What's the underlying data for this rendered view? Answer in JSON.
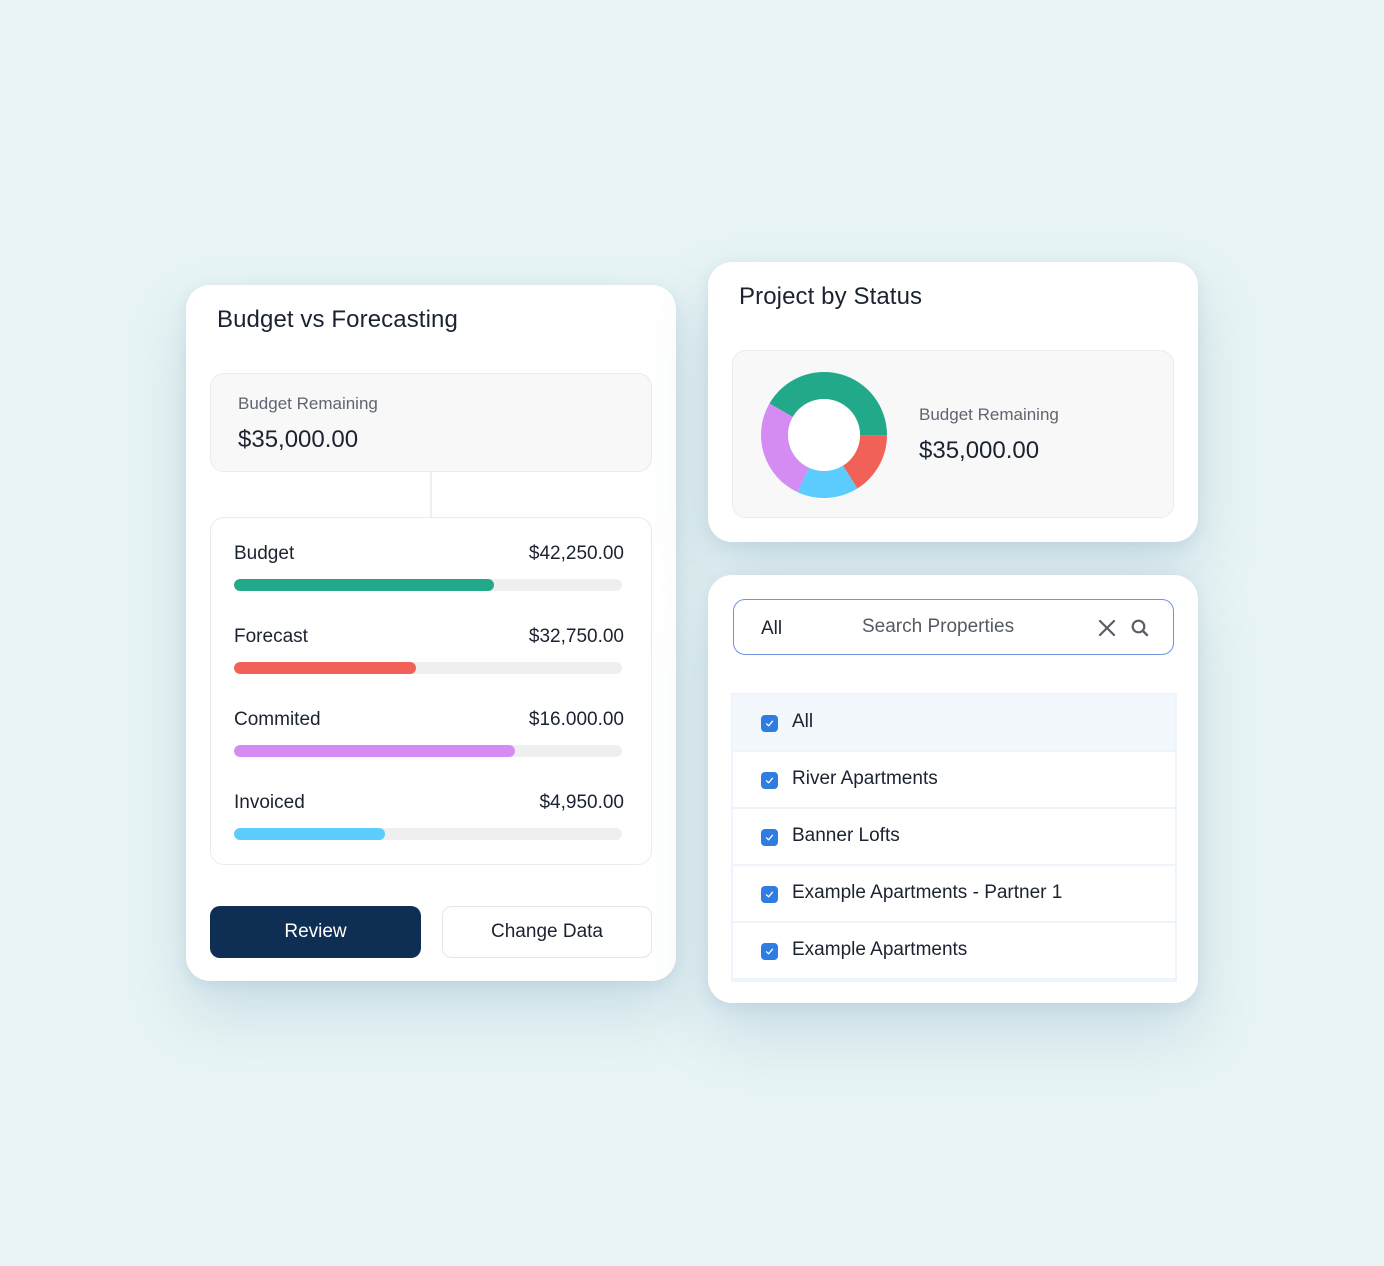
{
  "budget_card": {
    "title": "Budget vs Forecasting",
    "remaining": {
      "label": "Budget Remaining",
      "value": "$35,000.00"
    },
    "metrics": [
      {
        "label": "Budget",
        "value": "$42,250.00",
        "percent": 67,
        "color": "#22a98a"
      },
      {
        "label": "Forecast",
        "value": "$32,750.00",
        "percent": 47,
        "color": "#f26157"
      },
      {
        "label": "Commited",
        "value": "$16.000.00",
        "percent": 72.5,
        "color": "#d48cf3"
      },
      {
        "label": "Invoiced",
        "value": "$4,950.00",
        "percent": 39,
        "color": "#5ccbfd"
      }
    ],
    "buttons": {
      "review": "Review",
      "change_data": "Change Data"
    }
  },
  "status_card": {
    "title": "Project by Status",
    "remaining": {
      "label": "Budget Remaining",
      "value": "$35,000.00"
    }
  },
  "filter_card": {
    "search": {
      "scope": "All",
      "placeholder": "Search Properties"
    },
    "options": [
      {
        "label": "All",
        "checked": true
      },
      {
        "label": "River Apartments",
        "checked": true
      },
      {
        "label": "Banner Lofts",
        "checked": true
      },
      {
        "label": "Example Apartments - Partner 1",
        "checked": true
      },
      {
        "label": "Example Apartments",
        "checked": true
      }
    ]
  },
  "colors": {
    "primary_button": "#0e2f53",
    "checkbox": "#2f7de1",
    "search_border": "#6f93de",
    "background": "#e8f4f5"
  },
  "chart_data": [
    {
      "type": "bar",
      "title": "Budget vs Forecasting",
      "orientation": "horizontal",
      "categories": [
        "Budget",
        "Forecast",
        "Commited",
        "Invoiced"
      ],
      "value_labels": [
        "$42,250.00",
        "$32,750.00",
        "$16.000.00",
        "$4,950.00"
      ],
      "fill_percent": [
        67,
        47,
        72.5,
        39
      ],
      "colors": [
        "#22a98a",
        "#f26157",
        "#d48cf3",
        "#5ccbfd"
      ]
    },
    {
      "type": "pie",
      "title": "Project by Status",
      "donut": true,
      "slices": [
        {
          "color": "#22a98a",
          "percent": 41.7
        },
        {
          "color": "#f26157",
          "percent": 16.1
        },
        {
          "color": "#5ccbfd",
          "percent": 15.8
        },
        {
          "color": "#d48cf3",
          "percent": 26.4
        }
      ],
      "center_label": "Budget Remaining",
      "center_value": "$35,000.00"
    }
  ]
}
